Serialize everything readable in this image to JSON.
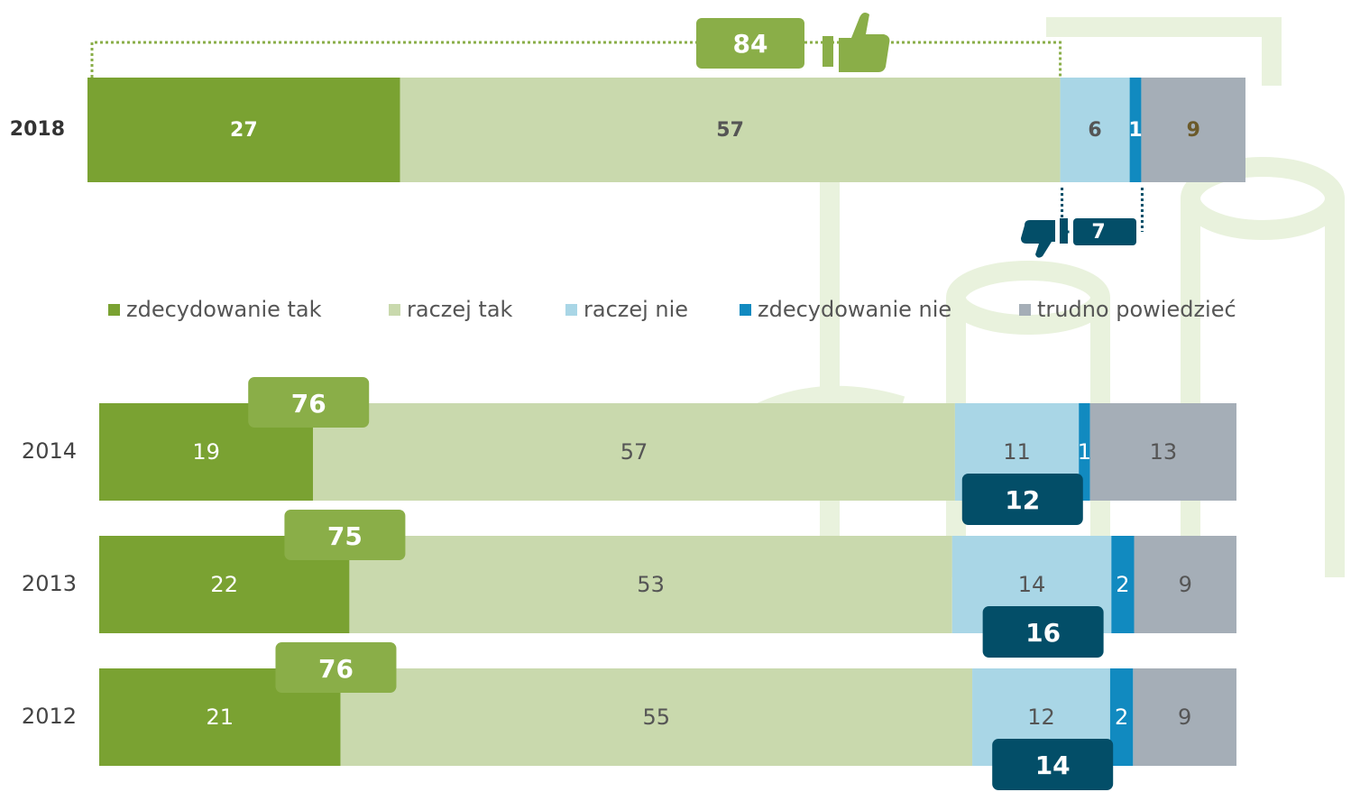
{
  "chart_data": {
    "type": "bar",
    "orientation": "horizontal",
    "stacked": true,
    "categories": [
      "2018",
      "2014",
      "2013",
      "2012"
    ],
    "series": [
      {
        "name": "zdecydowanie tak",
        "color": "#7aa232",
        "values": [
          27,
          19,
          22,
          21
        ]
      },
      {
        "name": "raczej tak",
        "color": "#c9d9ad",
        "values": [
          57,
          57,
          53,
          55
        ]
      },
      {
        "name": "raczej nie",
        "color": "#a9d6e6",
        "values": [
          6,
          11,
          14,
          12
        ]
      },
      {
        "name": "zdecydowanie nie",
        "color": "#118ac0",
        "values": [
          1,
          1,
          2,
          2
        ]
      },
      {
        "name": "trudno powiedzieć",
        "color": "#a5aeb7",
        "values": [
          9,
          13,
          9,
          9
        ]
      }
    ],
    "positive_totals": [
      84,
      76,
      75,
      76
    ],
    "negative_totals": [
      7,
      12,
      16,
      14
    ],
    "positive_color": "#8aae48",
    "negative_color": "#034e68"
  }
}
